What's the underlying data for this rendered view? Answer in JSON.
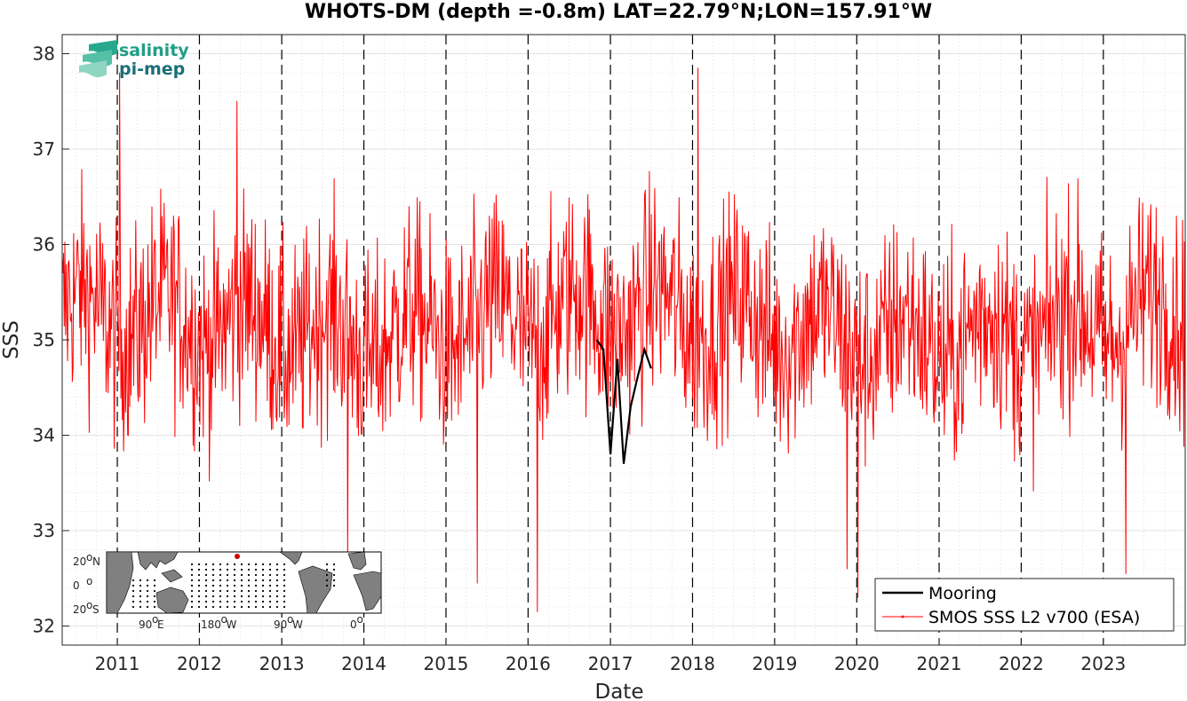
{
  "chart_data": {
    "type": "line",
    "title": "WHOTS-DM (depth =-0.8m) LAT=22.79°N;LON=157.91°W",
    "xlabel": "Date",
    "ylabel": "SSS",
    "xlim": [
      "2010-05-01",
      "2023-12-31"
    ],
    "ylim": [
      31.8,
      38.2
    ],
    "x_tick_labels": [
      "2011",
      "2012",
      "2013",
      "2014",
      "2015",
      "2016",
      "2017",
      "2018",
      "2019",
      "2020",
      "2021",
      "2022",
      "2023"
    ],
    "y_tick_labels": [
      "32",
      "33",
      "34",
      "35",
      "36",
      "37",
      "38"
    ],
    "grid": true,
    "minor_grid": true,
    "year_boundary_lines": "dashed black vertical lines at each January 1",
    "legend_position": "bottom-right",
    "series": [
      {
        "name": "Mooring",
        "color": "#000000",
        "style": "thick line",
        "x": [
          "2016-11-01",
          "2016-12-01",
          "2017-01-01",
          "2017-02-01",
          "2017-03-01",
          "2017-04-01",
          "2017-05-01",
          "2017-06-01",
          "2017-07-01"
        ],
        "y": [
          35.0,
          34.9,
          33.8,
          34.8,
          33.7,
          34.3,
          34.6,
          34.9,
          34.7
        ]
      },
      {
        "name": "SMOS SSS L2 v700 (ESA)",
        "color": "#ff0000",
        "style": "thin line with small markers",
        "description": "dense noisy series sampled every few days; mean approx 35.0-35.3, spread approx ±1.1",
        "x_range": [
          "2010-05-01",
          "2023-12-31"
        ],
        "monthly_mean": [
          35.3,
          35.2,
          35.2,
          35.1,
          35.0,
          35.1,
          35.2,
          35.3,
          35.3,
          35.2,
          35.1,
          35.0,
          35.0,
          35.1,
          35.2,
          35.3
        ],
        "extremes": [
          {
            "x": "2011-01-10",
            "y": 37.8
          },
          {
            "x": "2012-06-15",
            "y": 37.5
          },
          {
            "x": "2013-10-20",
            "y": 32.6
          },
          {
            "x": "2016-02-10",
            "y": 32.15
          },
          {
            "x": "2015-05-20",
            "y": 32.45
          },
          {
            "x": "2018-01-25",
            "y": 37.85
          },
          {
            "x": "2020-01-05",
            "y": 32.3
          },
          {
            "x": "2019-11-20",
            "y": 32.6
          },
          {
            "x": "2023-04-10",
            "y": 32.55
          }
        ]
      }
    ],
    "logo": {
      "line1": "salinity",
      "line2": "pi-mep"
    },
    "inset_map": {
      "lat_labels": [
        "20",
        "0",
        "20"
      ],
      "lat_suffix": [
        "N",
        "",
        "S"
      ],
      "lon_labels": [
        "90",
        "180",
        "90",
        "0"
      ],
      "lon_suffix": [
        "E",
        "W",
        "W",
        ""
      ],
      "degree_symbol": "o",
      "marker_color": "#cc0000"
    }
  }
}
